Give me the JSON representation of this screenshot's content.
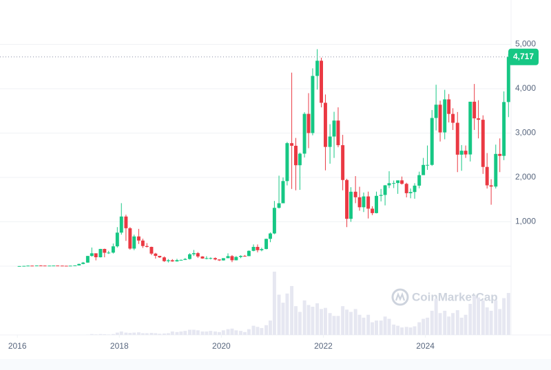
{
  "chart_data": {
    "type": "candlestick",
    "x": [
      2016.04,
      2016.13,
      2016.21,
      2016.29,
      2016.38,
      2016.46,
      2016.54,
      2016.63,
      2016.71,
      2016.79,
      2016.88,
      2016.96,
      2017.04,
      2017.13,
      2017.21,
      2017.29,
      2017.38,
      2017.46,
      2017.54,
      2017.63,
      2017.71,
      2017.79,
      2017.88,
      2017.96,
      2018.04,
      2018.13,
      2018.21,
      2018.29,
      2018.38,
      2018.46,
      2018.54,
      2018.63,
      2018.71,
      2018.79,
      2018.88,
      2018.96,
      2019.04,
      2019.13,
      2019.21,
      2019.29,
      2019.38,
      2019.46,
      2019.54,
      2019.63,
      2019.71,
      2019.79,
      2019.88,
      2019.96,
      2020.04,
      2020.13,
      2020.21,
      2020.29,
      2020.38,
      2020.46,
      2020.54,
      2020.63,
      2020.71,
      2020.79,
      2020.88,
      2020.96,
      2021.04,
      2021.13,
      2021.21,
      2021.29,
      2021.38,
      2021.46,
      2021.54,
      2021.63,
      2021.71,
      2021.79,
      2021.88,
      2021.96,
      2022.04,
      2022.13,
      2022.21,
      2022.29,
      2022.38,
      2022.46,
      2022.54,
      2022.63,
      2022.71,
      2022.79,
      2022.88,
      2022.96,
      2023.04,
      2023.13,
      2023.21,
      2023.29,
      2023.38,
      2023.46,
      2023.54,
      2023.63,
      2023.71,
      2023.79,
      2023.88,
      2023.96,
      2024.04,
      2024.13,
      2024.21,
      2024.29,
      2024.38,
      2024.46,
      2024.54,
      2024.63,
      2024.71,
      2024.79,
      2024.88,
      2024.96,
      2025.04,
      2025.13,
      2025.21,
      2025.29,
      2025.38,
      2025.46,
      2025.54,
      2025.63
    ],
    "open": [
      0.95,
      2.2,
      5.9,
      11.4,
      8.8,
      14.0,
      12.5,
      11.2,
      11.6,
      13.3,
      11.3,
      8.7,
      8.0,
      10.7,
      16.4,
      50,
      79.8,
      230,
      290,
      201,
      388,
      302,
      305,
      447,
      756,
      1119,
      855,
      396,
      670,
      577,
      454,
      434,
      283,
      232,
      198,
      113,
      133,
      107,
      136,
      141,
      161,
      268,
      293,
      218,
      172,
      180,
      182,
      151,
      130,
      180,
      226,
      133,
      207,
      231,
      226,
      345,
      434,
      360,
      386,
      615,
      737,
      1314,
      1418,
      1918,
      2773,
      2714,
      2275,
      2536,
      3433,
      3001,
      4288,
      4631,
      3683,
      2688,
      2922,
      3282,
      2727,
      1942,
      1067,
      1678,
      1553,
      1328,
      1572,
      1296,
      1196,
      1585,
      1605,
      1822,
      1870,
      1874,
      1934,
      1856,
      1645,
      1671,
      1815,
      2052,
      2282,
      2283,
      3340,
      3640,
      3015,
      3760,
      3432,
      3232,
      2513,
      2602,
      2518,
      3707,
      3332,
      3300,
      2237,
      1822,
      1794,
      2530,
      2486,
      3700
    ],
    "high": [
      2.8,
      6.1,
      15,
      12.5,
      15,
      21,
      14.9,
      12.5,
      14.2,
      14.3,
      11.6,
      9,
      11.2,
      17,
      55,
      95,
      230,
      420,
      250,
      390,
      395,
      345,
      510,
      880,
      1420,
      1160,
      880,
      710,
      840,
      620,
      520,
      440,
      300,
      233,
      218,
      160,
      159,
      166,
      150,
      183,
      290,
      365,
      318,
      226,
      224,
      197,
      196,
      153,
      180,
      289,
      250,
      227,
      245,
      251,
      355,
      490,
      490,
      415,
      620,
      760,
      1470,
      2040,
      2000,
      2800,
      4362,
      2890,
      2560,
      3470,
      3900,
      4460,
      4891,
      4700,
      3870,
      3200,
      3480,
      3580,
      2960,
      1970,
      1780,
      2030,
      1790,
      1660,
      1680,
      1350,
      1680,
      1740,
      1830,
      2140,
      1930,
      1930,
      2020,
      1880,
      1750,
      1870,
      2130,
      2440,
      2720,
      3520,
      4090,
      3730,
      3975,
      3880,
      3560,
      3475,
      2730,
      2720,
      3680,
      4107,
      3740,
      3400,
      2550,
      1960,
      2740,
      2880,
      3940,
      4790
    ],
    "low": [
      0.93,
      2.1,
      5.6,
      7.0,
      8.6,
      11.1,
      9.6,
      10.3,
      11.2,
      10.3,
      8.6,
      6.9,
      7.9,
      10.3,
      15.9,
      42,
      75,
      215,
      130,
      195,
      200,
      275,
      285,
      420,
      710,
      570,
      370,
      360,
      500,
      410,
      420,
      250,
      170,
      185,
      97,
      82,
      100,
      102,
      130,
      138,
      150,
      230,
      185,
      165,
      154,
      152,
      134,
      118,
      126,
      179,
      90,
      130,
      180,
      215,
      225,
      335,
      310,
      335,
      380,
      540,
      720,
      1300,
      1440,
      1820,
      1740,
      1710,
      1720,
      2450,
      2660,
      2950,
      3980,
      3580,
      2160,
      2310,
      2440,
      2680,
      1710,
      880,
      1000,
      1420,
      1250,
      1220,
      1075,
      1150,
      1190,
      1460,
      1370,
      1760,
      1760,
      1630,
      1840,
      1550,
      1530,
      1520,
      1755,
      2080,
      2170,
      2260,
      3060,
      2810,
      2860,
      3240,
      3070,
      2120,
      2150,
      2440,
      2360,
      3070,
      2880,
      2080,
      1750,
      1385,
      1750,
      2120,
      2390,
      3360
    ],
    "close": [
      2.2,
      5.9,
      11.4,
      8.8,
      14.0,
      12.5,
      11.2,
      11.6,
      13.3,
      11.3,
      8.7,
      8.0,
      10.7,
      16.4,
      50,
      79.8,
      230,
      290,
      201,
      388,
      302,
      305,
      447,
      756,
      1119,
      855,
      396,
      670,
      577,
      454,
      434,
      283,
      232,
      198,
      113,
      133,
      107,
      136,
      141,
      161,
      268,
      293,
      218,
      172,
      180,
      182,
      151,
      130,
      180,
      226,
      133,
      207,
      231,
      226,
      345,
      434,
      360,
      386,
      615,
      737,
      1314,
      1418,
      1918,
      2773,
      2714,
      2275,
      2536,
      3433,
      3001,
      4288,
      4631,
      3683,
      2688,
      2922,
      3282,
      2727,
      1942,
      1067,
      1678,
      1553,
      1328,
      1572,
      1296,
      1196,
      1585,
      1605,
      1822,
      1870,
      1874,
      1934,
      1856,
      1645,
      1671,
      1815,
      2052,
      2282,
      2283,
      3340,
      3640,
      3015,
      3760,
      3432,
      3232,
      2513,
      2602,
      2518,
      3707,
      3332,
      3300,
      2237,
      1822,
      1794,
      2530,
      2486,
      3700,
      4717
    ],
    "volume": [
      0.01,
      0.03,
      0.1,
      0.1,
      0.2,
      0.2,
      0.3,
      0.2,
      0.1,
      0.1,
      0.1,
      0.1,
      0.1,
      0.2,
      1,
      1,
      5,
      15,
      10,
      15,
      12,
      8,
      15,
      40,
      60,
      40,
      35,
      40,
      45,
      30,
      30,
      35,
      30,
      20,
      25,
      30,
      60,
      50,
      60,
      70,
      90,
      90,
      80,
      60,
      60,
      70,
      60,
      50,
      80,
      100,
      110,
      80,
      70,
      50,
      100,
      160,
      140,
      120,
      170,
      250,
      1100,
      700,
      560,
      720,
      850,
      500,
      400,
      600,
      520,
      490,
      550,
      450,
      470,
      380,
      330,
      330,
      500,
      440,
      400,
      450,
      350,
      300,
      350,
      220,
      250,
      250,
      320,
      280,
      180,
      160,
      130,
      140,
      130,
      150,
      220,
      280,
      300,
      420,
      630,
      380,
      420,
      320,
      380,
      430,
      300,
      350,
      540,
      680,
      650,
      600,
      480,
      420,
      600,
      450,
      640,
      730
    ],
    "up_color": "#16c784",
    "down_color": "#ea3943",
    "volume_color": "#e6e7f1",
    "xlim": [
      2015.66,
      2025.68
    ],
    "xticks": [
      2016,
      2018,
      2020,
      2022,
      2024
    ],
    "ylim": [
      0,
      6000
    ],
    "yticks": [
      {
        "value": 1000,
        "label": "1,000"
      },
      {
        "value": 2000,
        "label": "2,000"
      },
      {
        "value": 3000,
        "label": "3,000"
      },
      {
        "value": 4000,
        "label": "4,000"
      },
      {
        "value": 5000,
        "label": "5,000"
      }
    ],
    "grid": true,
    "last_price": {
      "value": 4717,
      "label": "4,717"
    },
    "watermark": "CoinMarketCap"
  }
}
